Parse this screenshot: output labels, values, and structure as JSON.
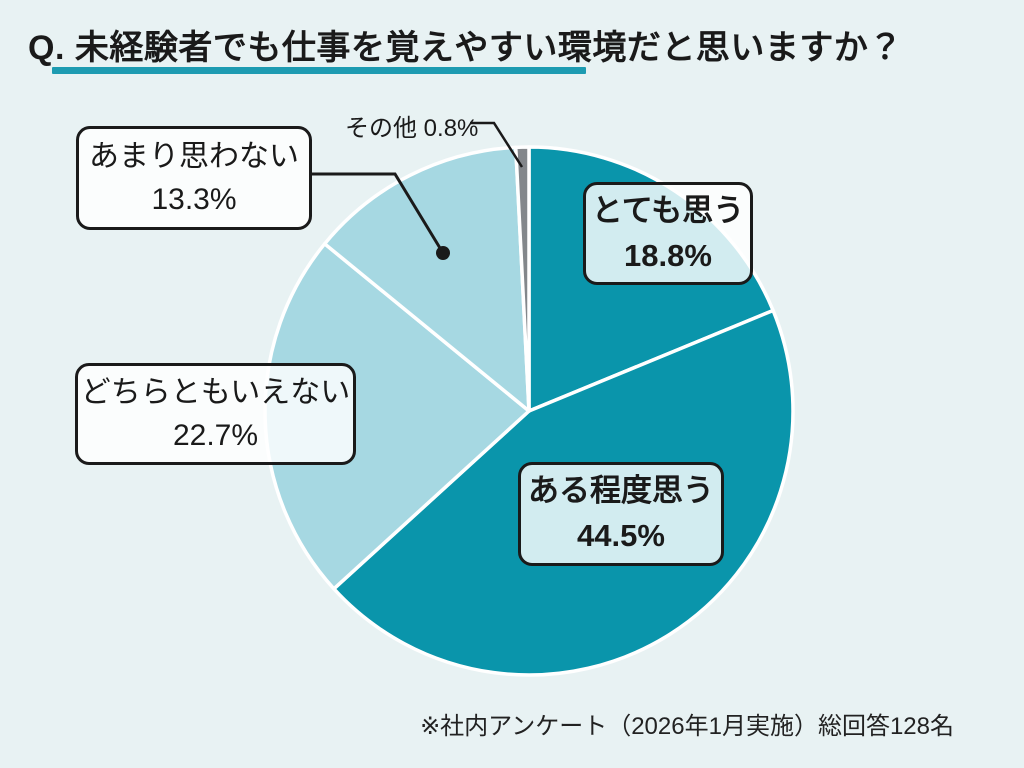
{
  "header": {
    "title": "Q. 未経験者でも仕事を覚えやすい環境だと思いますか？",
    "accent_color": "#1d9bb1"
  },
  "chart_data": {
    "type": "pie",
    "title": "Q. 未経験者でも仕事を覚えやすい環境だと思いますか？",
    "start_angle": "top",
    "direction": "clockwise",
    "unit": "%",
    "legend": "callout-boxes",
    "segments": [
      {
        "label": "とても思う",
        "value": 18.8,
        "color": "#0a95ab",
        "emphasis": "bold"
      },
      {
        "label": "ある程度思う",
        "value": 44.5,
        "color": "#0a95ab",
        "emphasis": "bold"
      },
      {
        "label": "どちらともいえない",
        "value": 22.7,
        "color": "#a6d8e2",
        "emphasis": "regular"
      },
      {
        "label": "あまり思わない",
        "value": 13.3,
        "color": "#a6d8e2",
        "emphasis": "regular"
      },
      {
        "label": "その他",
        "value": 0.8,
        "color": "#83878b",
        "emphasis": "regular"
      }
    ]
  },
  "footnote": {
    "text": "※社内アンケート（2026年1月実施）総回答128名"
  },
  "colors": {
    "background": "#e8f2f3",
    "slice_divider": "#ffffff",
    "callout_border": "#1a1a1a",
    "leader_line": "#1a1a1a"
  }
}
